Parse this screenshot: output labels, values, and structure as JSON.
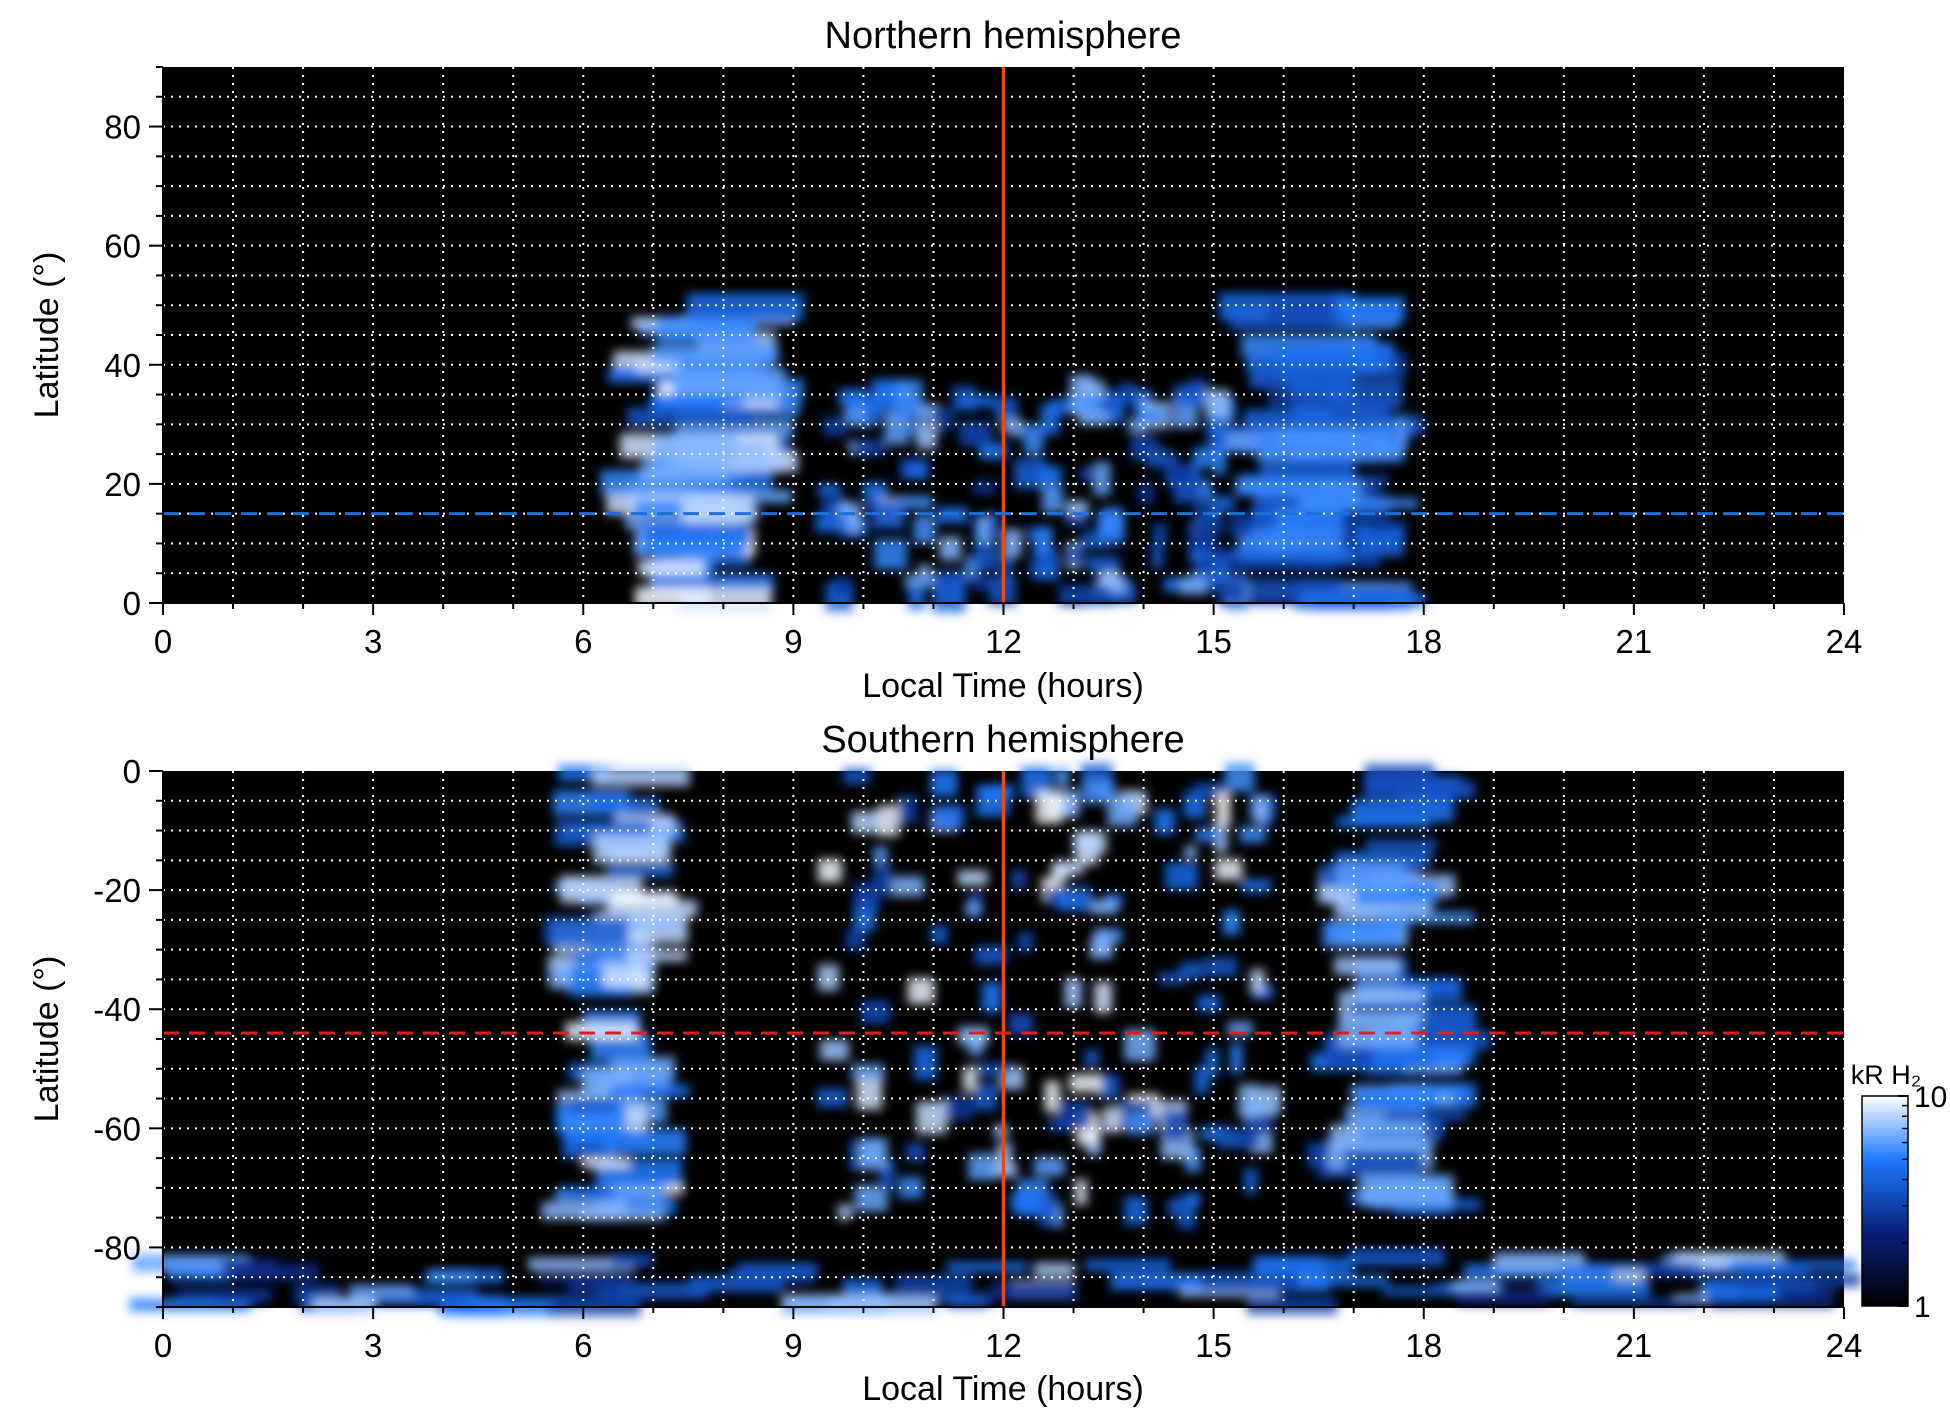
{
  "chart_data": [
    {
      "type": "heatmap",
      "title": "Northern hemisphere",
      "xlabel": "Local Time (hours)",
      "ylabel": "Latitude (°)",
      "xlim": [
        0,
        24
      ],
      "ylim": [
        0,
        90
      ],
      "xticks": [
        0,
        3,
        6,
        9,
        12,
        15,
        18,
        21,
        24
      ],
      "yticks": [
        0,
        20,
        40,
        60,
        80
      ],
      "grid": true,
      "reference_lines": [
        {
          "orientation": "vertical",
          "x": 12,
          "color": "#e64a19",
          "style": "solid"
        },
        {
          "orientation": "horizontal",
          "y": 15,
          "color": "#1e6fd9",
          "style": "dashed"
        }
      ],
      "emission_regions": [
        {
          "shape": "band",
          "lt": [
            6.3,
            9.0
          ],
          "lat": [
            0,
            52
          ],
          "peak_kR": 10
        },
        {
          "shape": "band",
          "lt": [
            15.2,
            18.0
          ],
          "lat": [
            0,
            50
          ],
          "peak_kR": 6
        },
        {
          "shape": "patches",
          "lt": [
            9.5,
            15.5
          ],
          "lat": [
            0,
            36
          ],
          "peak_kR": 8
        }
      ]
    },
    {
      "type": "heatmap",
      "title": "Southern hemisphere",
      "xlabel": "Local Time (hours)",
      "ylabel": "Latitude (°)",
      "xlim": [
        0,
        24
      ],
      "ylim": [
        -90,
        0
      ],
      "xticks": [
        0,
        3,
        6,
        9,
        12,
        15,
        18,
        21,
        24
      ],
      "yticks": [
        0,
        -20,
        -40,
        -60,
        -80
      ],
      "grid": true,
      "reference_lines": [
        {
          "orientation": "vertical",
          "x": 12,
          "color": "#e64a19",
          "style": "solid"
        },
        {
          "orientation": "horizontal",
          "y": -44,
          "color": "#e02020",
          "style": "dashed"
        }
      ],
      "emission_regions": [
        {
          "shape": "band",
          "lt": [
            5.5,
            7.5
          ],
          "lat": [
            -75,
            0
          ],
          "peak_kR": 10
        },
        {
          "shape": "band",
          "lt": [
            16.5,
            18.8
          ],
          "lat": [
            -75,
            0
          ],
          "peak_kR": 8
        },
        {
          "shape": "patches",
          "lt": [
            9.5,
            15.8
          ],
          "lat": [
            -75,
            0
          ],
          "peak_kR": 10
        },
        {
          "shape": "arc",
          "lt": [
            0,
            24
          ],
          "lat": [
            -90,
            -78
          ],
          "peak_kR": 8
        }
      ],
      "colorbar": {
        "label": "kR H₂",
        "min": 1,
        "max": 10,
        "scale": "log",
        "ticks": [
          1,
          10
        ]
      }
    }
  ]
}
